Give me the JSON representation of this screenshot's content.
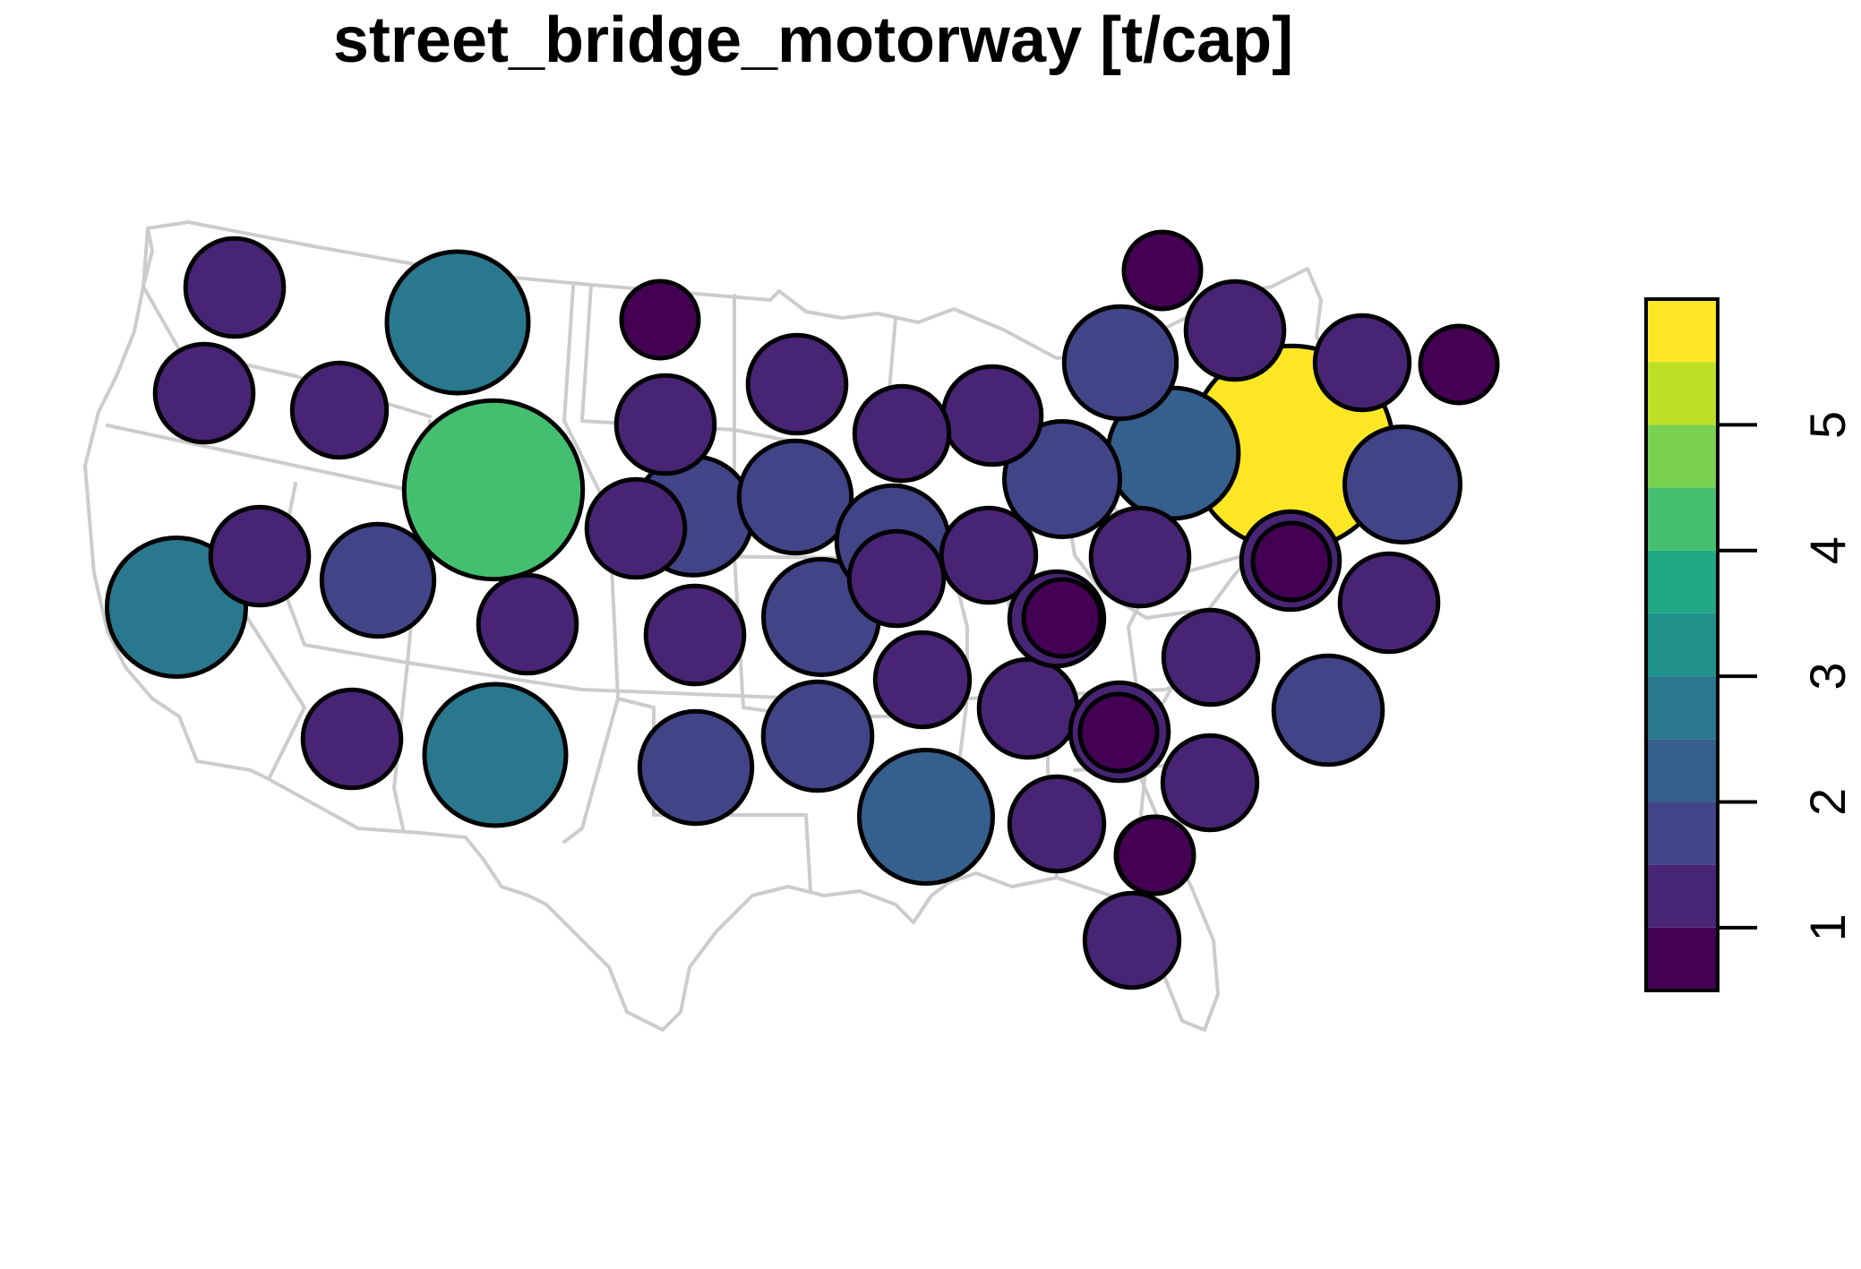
{
  "title": "street_bridge_motorway [t/cap]",
  "legend": {
    "ticks": [
      "1",
      "2",
      "3",
      "4",
      "5"
    ],
    "tick_values": [
      1,
      2,
      3,
      4,
      5
    ],
    "range": [
      0.5,
      6.0
    ],
    "palette": [
      "#440154",
      "#482475",
      "#414487",
      "#355f8d",
      "#2a788e",
      "#21918c",
      "#22a884",
      "#44bf70",
      "#7ad151",
      "#bddf26",
      "#fde725"
    ],
    "bins": [
      0.5,
      1.0,
      1.5,
      2.0,
      2.5,
      3.0,
      3.5,
      4.0,
      4.5,
      5.0,
      5.5,
      6.0
    ]
  },
  "chart_data": {
    "type": "proportional-symbol map",
    "variable": "street_bridge_motorway [t/cap]",
    "values": [
      1.3,
      2.7,
      1.3,
      1.2,
      0.8,
      1.3,
      4.3,
      1.3,
      1.3,
      0.8,
      0.8,
      1.7,
      1.3,
      1.2,
      2.6,
      1.3,
      1.7,
      1.3,
      1.7,
      1.2,
      1.8,
      2.3,
      5.6,
      1.8,
      1.3,
      1.2,
      1.7,
      1.2,
      1.3,
      1.3,
      1.2,
      0.8,
      1.3,
      1.2,
      1.9,
      1.8,
      1.3,
      1.3,
      0.8,
      1.3,
      1.3,
      2.7,
      1.2,
      0.8,
      1.2,
      1.6,
      1.7,
      1.6,
      2.4,
      1.2,
      0.8,
      1.2,
      0.8
    ]
  }
}
